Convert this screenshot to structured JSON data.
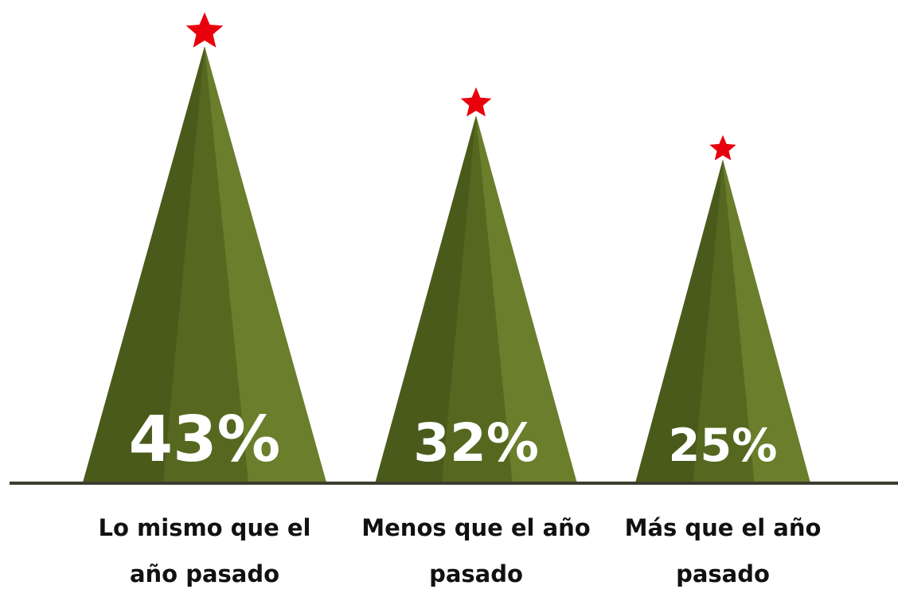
{
  "chart_data": {
    "type": "tree",
    "categories": [
      "Lo mismo que el año pasado",
      "Menos que el año pasado",
      "Más que el año pasado"
    ],
    "values": [
      43,
      32,
      25
    ],
    "value_labels": [
      "43%",
      "32%",
      "25%"
    ],
    "colors": [
      "#4a5a1b",
      "#566820",
      "#6a7e2b"
    ],
    "star_color": "#e8000c",
    "baseline_color": "#3d3d2e"
  }
}
